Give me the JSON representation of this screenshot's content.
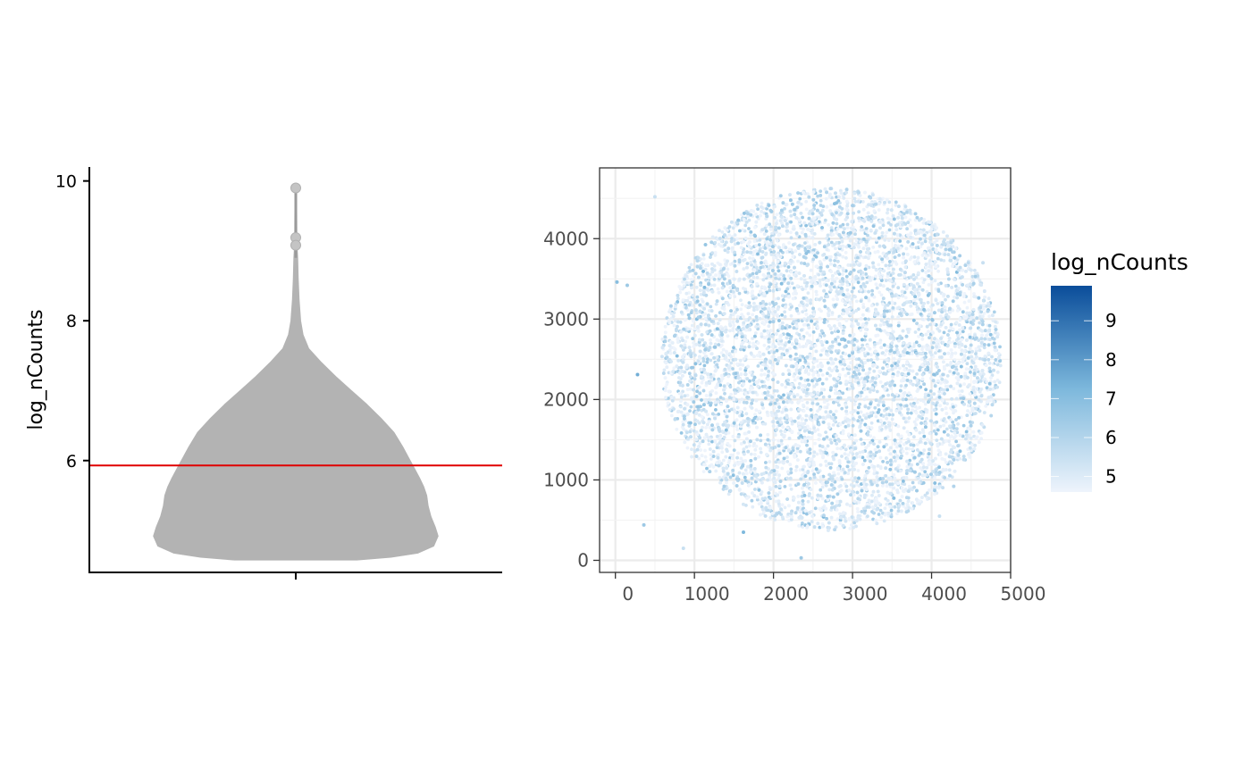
{
  "chart_data": [
    {
      "type": "violin",
      "ylabel": "log_nCounts",
      "ylim": [
        4.4,
        10.2
      ],
      "y_ticks": [
        6,
        8,
        10
      ],
      "y_tick_labels": [
        "6",
        "8",
        "10"
      ],
      "x_ticks": [
        ""
      ],
      "fill_color": "#b3b3b3",
      "outline_color": "#b3b3b3",
      "hline": {
        "y": 5.93,
        "color": "#e00000"
      },
      "profile": [
        {
          "y": 4.58,
          "w": 0.43
        },
        {
          "y": 4.62,
          "w": 0.67
        },
        {
          "y": 4.68,
          "w": 0.86
        },
        {
          "y": 4.78,
          "w": 0.97
        },
        {
          "y": 4.92,
          "w": 1.0
        },
        {
          "y": 5.05,
          "w": 0.98
        },
        {
          "y": 5.2,
          "w": 0.95
        },
        {
          "y": 5.35,
          "w": 0.93
        },
        {
          "y": 5.5,
          "w": 0.92
        },
        {
          "y": 5.62,
          "w": 0.9
        },
        {
          "y": 5.75,
          "w": 0.87
        },
        {
          "y": 5.9,
          "w": 0.83
        },
        {
          "y": 6.05,
          "w": 0.79
        },
        {
          "y": 6.2,
          "w": 0.75
        },
        {
          "y": 6.4,
          "w": 0.69
        },
        {
          "y": 6.6,
          "w": 0.6
        },
        {
          "y": 6.8,
          "w": 0.5
        },
        {
          "y": 7.0,
          "w": 0.39
        },
        {
          "y": 7.2,
          "w": 0.28
        },
        {
          "y": 7.4,
          "w": 0.18
        },
        {
          "y": 7.6,
          "w": 0.09
        },
        {
          "y": 7.8,
          "w": 0.05
        },
        {
          "y": 8.0,
          "w": 0.033
        },
        {
          "y": 8.3,
          "w": 0.022
        },
        {
          "y": 8.6,
          "w": 0.016
        },
        {
          "y": 8.9,
          "w": 0.012
        },
        {
          "y": 9.1,
          "w": 0.006
        },
        {
          "y": 9.9,
          "w": 0.004
        }
      ],
      "outliers": [
        9.9,
        9.19,
        9.08
      ]
    },
    {
      "type": "scatter",
      "xlim": [
        -200,
        5000
      ],
      "ylim": [
        -150,
        4880
      ],
      "x_ticks": [
        0,
        1000,
        2000,
        3000,
        4000,
        5000
      ],
      "x_tick_labels": [
        "0",
        "1000",
        "2000",
        "3000",
        "4000",
        "5000"
      ],
      "y_ticks": [
        0,
        1000,
        2000,
        3000,
        4000
      ],
      "y_tick_labels": [
        "0",
        "1000",
        "2000",
        "3000",
        "4000"
      ],
      "grid": true,
      "cloud": {
        "shape": "circle",
        "center": [
          2730,
          2500
        ],
        "radius": 2150,
        "point_count": 9000,
        "value_range": [
          4.6,
          7.2
        ]
      },
      "stray_points": [
        {
          "x": 20,
          "y": 3460,
          "v": 7.0
        },
        {
          "x": 150,
          "y": 3420,
          "v": 6.5
        },
        {
          "x": 500,
          "y": 4520,
          "v": 5.5
        },
        {
          "x": 280,
          "y": 2310,
          "v": 7.5
        },
        {
          "x": 360,
          "y": 440,
          "v": 6.5
        },
        {
          "x": 860,
          "y": 150,
          "v": 5.5
        },
        {
          "x": 1620,
          "y": 350,
          "v": 7.2
        },
        {
          "x": 2350,
          "y": 30,
          "v": 6.5
        },
        {
          "x": 4650,
          "y": 3700,
          "v": 5.5
        },
        {
          "x": 4100,
          "y": 550,
          "v": 5.5
        },
        {
          "x": 4280,
          "y": 920,
          "v": 6.0
        }
      ],
      "legend": {
        "title": "log_nCounts",
        "position": "right",
        "range": [
          4.6,
          9.9
        ],
        "ticks": [
          5,
          6,
          7,
          8,
          9
        ],
        "tick_labels": [
          "5",
          "6",
          "7",
          "8",
          "9"
        ],
        "low_color": "#eef4fc",
        "high_color": "#0a4d9a"
      }
    }
  ]
}
